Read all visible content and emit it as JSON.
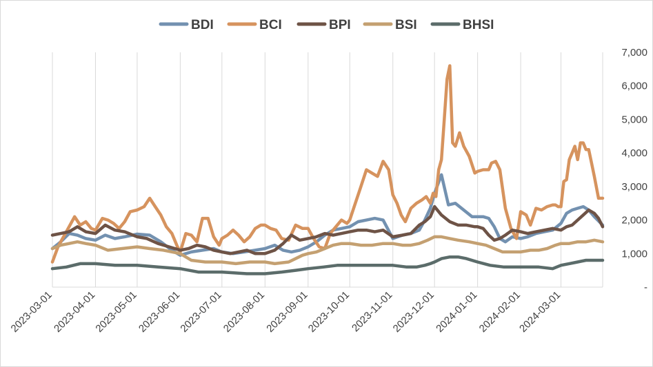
{
  "chart_data": {
    "type": "line",
    "title": "",
    "xlabel": "",
    "ylabel": "",
    "ylim": [
      0,
      7000
    ],
    "y_ticks": [
      "-",
      "1,000",
      "2,000",
      "3,000",
      "4,000",
      "5,000",
      "6,000",
      "7,000"
    ],
    "x_ticks": [
      "2023-03-01",
      "2023-04-01",
      "2023-05-01",
      "2023-06-01",
      "2023-07-01",
      "2023-08-01",
      "2023-09-01",
      "2023-10-01",
      "2023-11-01",
      "2023-12-01",
      "2024-01-01",
      "2024-02-01",
      "2024-03-01"
    ],
    "x_tick_days": [
      0,
      31,
      61,
      92,
      122,
      153,
      184,
      214,
      245,
      275,
      306,
      337,
      366
    ],
    "x_max_days": 396,
    "gridlines": "vertical",
    "legend_position": "top",
    "series": [
      {
        "name": "BDI",
        "color": "#7391b0",
        "x": [
          0,
          6,
          12,
          18,
          24,
          31,
          38,
          45,
          52,
          61,
          70,
          78,
          86,
          92,
          100,
          108,
          116,
          122,
          130,
          138,
          146,
          153,
          160,
          166,
          172,
          178,
          184,
          190,
          196,
          202,
          208,
          214,
          220,
          226,
          232,
          238,
          245,
          252,
          258,
          264,
          268,
          272,
          275,
          280,
          285,
          290,
          296,
          302,
          306,
          310,
          314,
          318,
          322,
          326,
          331,
          337,
          342,
          348,
          354,
          360,
          366,
          370,
          374,
          378,
          382,
          386,
          390,
          396
        ],
        "y": [
          1150,
          1350,
          1600,
          1550,
          1450,
          1400,
          1550,
          1450,
          1500,
          1580,
          1550,
          1350,
          1100,
          950,
          1050,
          1100,
          1150,
          1050,
          1000,
          1050,
          1100,
          1150,
          1250,
          1100,
          1050,
          1100,
          1200,
          1350,
          1550,
          1700,
          1750,
          1800,
          1950,
          2000,
          2050,
          2000,
          1450,
          1550,
          1600,
          1700,
          2000,
          2350,
          2800,
          3350,
          2450,
          2500,
          2300,
          2100,
          2100,
          2100,
          2050,
          1800,
          1450,
          1350,
          1500,
          1450,
          1500,
          1600,
          1650,
          1700,
          1900,
          2200,
          2300,
          2350,
          2400,
          2300,
          2100,
          1850
        ]
      },
      {
        "name": "BCI",
        "color": "#d6935e",
        "x": [
          0,
          4,
          8,
          12,
          16,
          20,
          24,
          28,
          31,
          36,
          40,
          44,
          48,
          52,
          56,
          61,
          66,
          70,
          74,
          78,
          82,
          86,
          90,
          92,
          96,
          100,
          104,
          108,
          112,
          116,
          120,
          122,
          126,
          130,
          134,
          138,
          142,
          146,
          150,
          153,
          157,
          161,
          165,
          170,
          175,
          180,
          184,
          188,
          192,
          196,
          200,
          204,
          208,
          212,
          214,
          218,
          222,
          226,
          230,
          234,
          238,
          242,
          245,
          248,
          251,
          254,
          258,
          262,
          266,
          269,
          272,
          274,
          276,
          278,
          280,
          282,
          284,
          286,
          288,
          290,
          293,
          296,
          300,
          304,
          306,
          310,
          314,
          316,
          319,
          322,
          326,
          330,
          334,
          337,
          341,
          344,
          348,
          352,
          356,
          360,
          362,
          364,
          366,
          368,
          370,
          372,
          374,
          376,
          378,
          380,
          382,
          384,
          386,
          388,
          390,
          393,
          396
        ],
        "y": [
          750,
          1200,
          1500,
          1800,
          2100,
          1850,
          1950,
          1750,
          1700,
          2050,
          2000,
          1900,
          1750,
          1950,
          2250,
          2300,
          2400,
          2650,
          2400,
          2150,
          1800,
          1600,
          1200,
          1050,
          1600,
          1550,
          1350,
          2050,
          2050,
          1500,
          1250,
          1450,
          1550,
          1700,
          1550,
          1350,
          1500,
          1750,
          1850,
          1850,
          1750,
          1700,
          1450,
          1400,
          1850,
          1750,
          1750,
          1450,
          1200,
          1150,
          1600,
          1800,
          2000,
          1900,
          2000,
          2500,
          3000,
          3500,
          3400,
          3300,
          3750,
          3500,
          2750,
          2500,
          2150,
          1950,
          2350,
          2500,
          2600,
          2700,
          2500,
          2800,
          2700,
          3500,
          3800,
          5000,
          6200,
          6600,
          4300,
          4200,
          4600,
          4200,
          3900,
          3400,
          3450,
          3500,
          3500,
          3700,
          3750,
          3500,
          2350,
          1750,
          1450,
          2250,
          2150,
          1850,
          2350,
          2300,
          2400,
          2450,
          2450,
          2400,
          2400,
          3150,
          3200,
          3800,
          4000,
          4200,
          3800,
          4300,
          4300,
          4100,
          4100,
          3700,
          3300,
          2650,
          2650
        ]
      },
      {
        "name": "BPI",
        "color": "#6e5346",
        "x": [
          0,
          6,
          12,
          18,
          24,
          31,
          38,
          45,
          52,
          61,
          68,
          76,
          84,
          92,
          98,
          104,
          110,
          116,
          122,
          128,
          134,
          140,
          146,
          153,
          160,
          166,
          172,
          178,
          184,
          190,
          196,
          202,
          208,
          214,
          220,
          226,
          232,
          238,
          245,
          252,
          258,
          264,
          268,
          272,
          275,
          280,
          286,
          292,
          298,
          304,
          306,
          310,
          314,
          318,
          322,
          326,
          331,
          337,
          342,
          348,
          354,
          360,
          366,
          370,
          374,
          378,
          382,
          386,
          390,
          393,
          396
        ],
        "y": [
          1550,
          1600,
          1650,
          1800,
          1650,
          1600,
          1850,
          1700,
          1650,
          1500,
          1450,
          1300,
          1200,
          1100,
          1150,
          1250,
          1200,
          1100,
          1050,
          1000,
          1050,
          1100,
          1000,
          1000,
          1100,
          1300,
          1550,
          1400,
          1450,
          1500,
          1600,
          1550,
          1600,
          1650,
          1700,
          1700,
          1650,
          1700,
          1500,
          1550,
          1600,
          1850,
          1950,
          2100,
          2400,
          2150,
          1950,
          1850,
          1850,
          1800,
          1800,
          1750,
          1550,
          1400,
          1450,
          1550,
          1700,
          1650,
          1600,
          1650,
          1700,
          1750,
          1700,
          1800,
          1850,
          2000,
          2150,
          2300,
          2200,
          2050,
          1800
        ]
      },
      {
        "name": "BSI",
        "color": "#c4a071",
        "x": [
          0,
          6,
          12,
          18,
          24,
          31,
          40,
          50,
          61,
          70,
          80,
          92,
          100,
          110,
          122,
          132,
          142,
          153,
          160,
          170,
          180,
          184,
          190,
          196,
          202,
          208,
          214,
          222,
          230,
          238,
          245,
          252,
          258,
          264,
          270,
          275,
          280,
          286,
          292,
          300,
          306,
          312,
          318,
          324,
          331,
          337,
          344,
          350,
          356,
          362,
          366,
          372,
          378,
          384,
          390,
          396
        ],
        "y": [
          1150,
          1250,
          1300,
          1350,
          1300,
          1250,
          1100,
          1150,
          1200,
          1150,
          1100,
          1000,
          800,
          750,
          750,
          700,
          750,
          750,
          700,
          750,
          950,
          1000,
          1050,
          1150,
          1250,
          1300,
          1300,
          1250,
          1250,
          1300,
          1300,
          1250,
          1250,
          1300,
          1400,
          1500,
          1500,
          1450,
          1400,
          1350,
          1300,
          1250,
          1150,
          1050,
          1050,
          1050,
          1100,
          1100,
          1150,
          1250,
          1300,
          1300,
          1350,
          1350,
          1400,
          1350
        ]
      },
      {
        "name": "BHSI",
        "color": "#5b6c6a",
        "x": [
          0,
          10,
          20,
          31,
          45,
          61,
          76,
          92,
          105,
          122,
          140,
          153,
          165,
          175,
          184,
          195,
          205,
          214,
          230,
          245,
          255,
          262,
          268,
          272,
          275,
          280,
          286,
          292,
          298,
          306,
          315,
          325,
          337,
          350,
          360,
          366,
          372,
          378,
          384,
          390,
          396
        ],
        "y": [
          550,
          600,
          700,
          700,
          650,
          650,
          600,
          550,
          450,
          450,
          400,
          400,
          450,
          500,
          550,
          600,
          650,
          650,
          650,
          650,
          600,
          600,
          650,
          700,
          750,
          850,
          900,
          900,
          850,
          750,
          650,
          600,
          600,
          600,
          550,
          650,
          700,
          750,
          800,
          800,
          800
        ]
      }
    ]
  }
}
